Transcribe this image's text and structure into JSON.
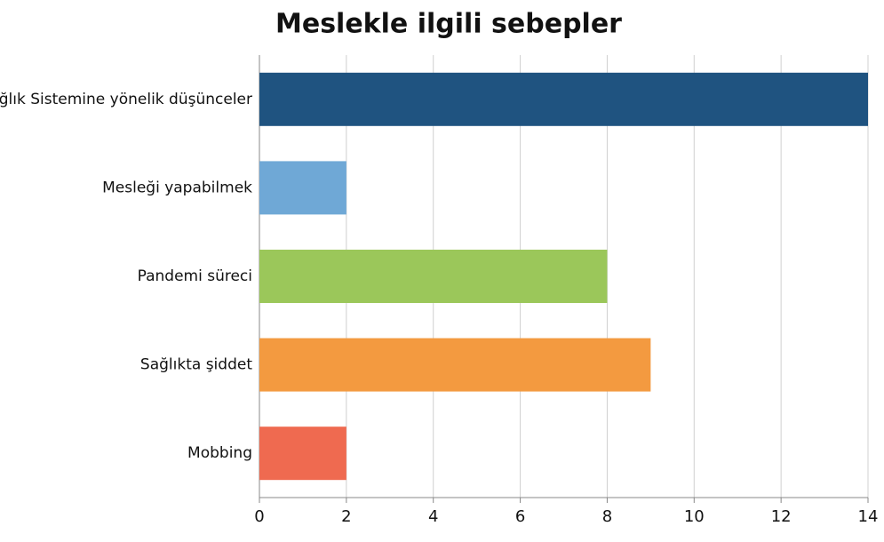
{
  "chart_data": {
    "type": "bar",
    "orientation": "horizontal",
    "title": "Meslekle ilgili sebepler",
    "categories": [
      "Sağlık Sistemine yönelik düşünceler",
      "Mesleği yapabilmek",
      "Pandemi süreci",
      "Sağlıkta şiddet",
      "Mobbing"
    ],
    "values": [
      14,
      2,
      8,
      9,
      2
    ],
    "colors": [
      "#1f5380",
      "#6fa8d6",
      "#9bc75a",
      "#f39a40",
      "#ef6a50"
    ],
    "xlim": [
      0,
      14
    ],
    "xticks": [
      0,
      2,
      4,
      6,
      8,
      10,
      12,
      14
    ],
    "grid": true
  }
}
